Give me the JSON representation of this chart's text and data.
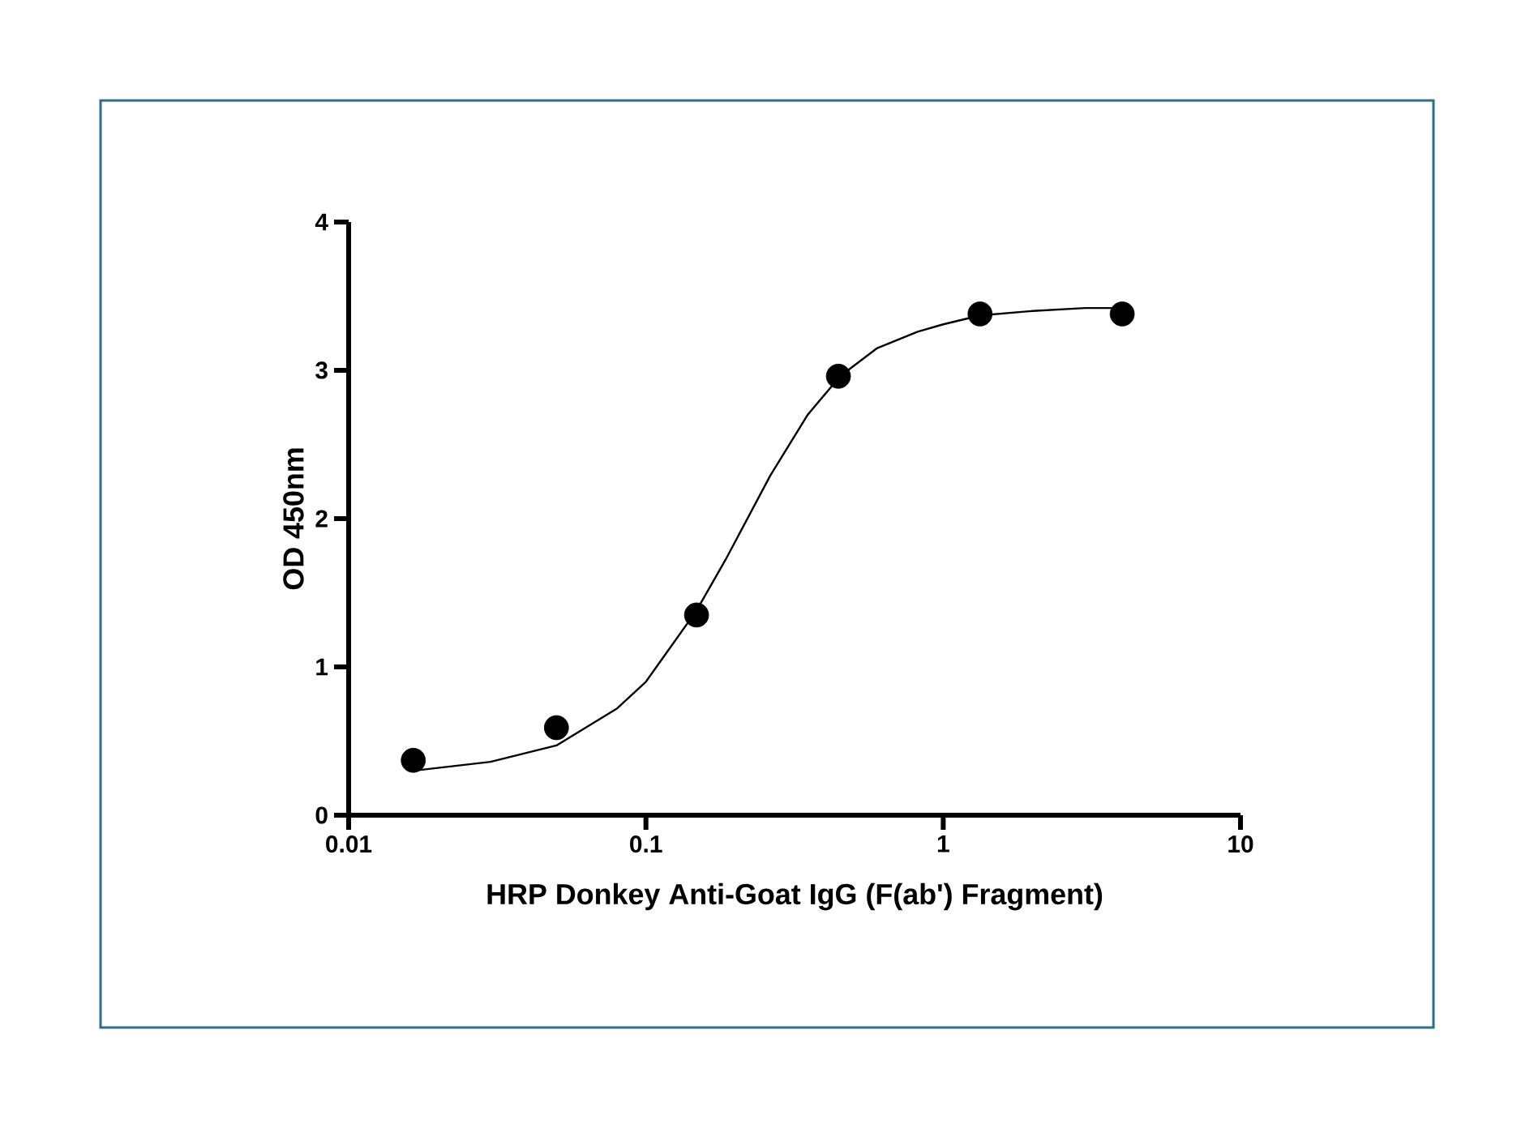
{
  "chart_data": {
    "type": "scatter",
    "xlabel": "HRP Donkey Anti-Goat IgG (F(ab') Fragment)",
    "ylabel": "OD 450nm",
    "log": "x",
    "xlim": [
      0.01,
      10
    ],
    "xticks": [
      0.01,
      0.1,
      1,
      10
    ],
    "ylim": [
      0,
      4
    ],
    "yticks": [
      0,
      1,
      2,
      3,
      4
    ],
    "grid": false,
    "series": [
      {
        "color": "#000000",
        "marker": "circle",
        "x": [
          0.0165,
          0.05,
          0.148,
          0.444,
          1.33,
          4.0
        ],
        "values": [
          0.37,
          0.59,
          1.35,
          2.96,
          3.38,
          3.38
        ]
      },
      {
        "type": "line",
        "color": "#000000",
        "marker": "none",
        "line_style": "solid",
        "x": [
          0.0165,
          0.03,
          0.05,
          0.08,
          0.1,
          0.148,
          0.185,
          0.262,
          0.35,
          0.45,
          0.6,
          0.82,
          1.0,
          1.33,
          2.0,
          3.0,
          4.0
        ],
        "values": [
          0.3,
          0.36,
          0.47,
          0.72,
          0.9,
          1.38,
          1.72,
          2.29,
          2.7,
          2.96,
          3.15,
          3.26,
          3.31,
          3.37,
          3.4,
          3.42,
          3.42
        ]
      }
    ]
  }
}
